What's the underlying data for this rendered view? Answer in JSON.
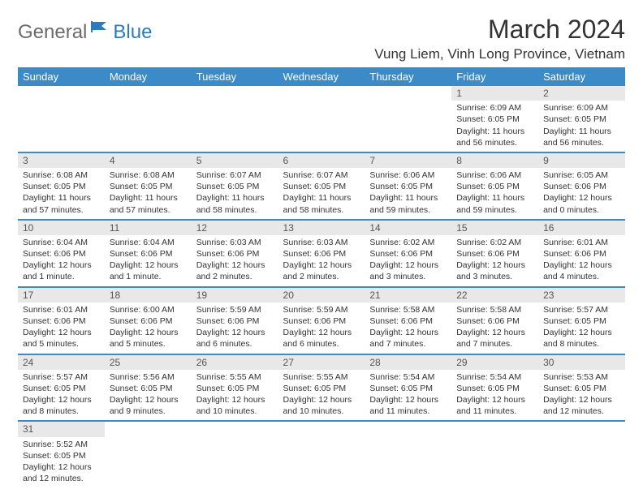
{
  "logo": {
    "part1": "General",
    "part2": "Blue"
  },
  "title": "March 2024",
  "location": "Vung Liem, Vinh Long Province, Vietnam",
  "colors": {
    "header_bg": "#3b8bc9",
    "header_fg": "#ffffff",
    "row_divider": "#3b8bc9",
    "daynum_bg": "#e8e8e8",
    "logo_gray": "#6b6b6b",
    "logo_blue": "#2d7bbf"
  },
  "day_headers": [
    "Sunday",
    "Monday",
    "Tuesday",
    "Wednesday",
    "Thursday",
    "Friday",
    "Saturday"
  ],
  "weeks": [
    [
      null,
      null,
      null,
      null,
      null,
      {
        "n": "1",
        "sunrise": "Sunrise: 6:09 AM",
        "sunset": "Sunset: 6:05 PM",
        "daylight": "Daylight: 11 hours and 56 minutes."
      },
      {
        "n": "2",
        "sunrise": "Sunrise: 6:09 AM",
        "sunset": "Sunset: 6:05 PM",
        "daylight": "Daylight: 11 hours and 56 minutes."
      }
    ],
    [
      {
        "n": "3",
        "sunrise": "Sunrise: 6:08 AM",
        "sunset": "Sunset: 6:05 PM",
        "daylight": "Daylight: 11 hours and 57 minutes."
      },
      {
        "n": "4",
        "sunrise": "Sunrise: 6:08 AM",
        "sunset": "Sunset: 6:05 PM",
        "daylight": "Daylight: 11 hours and 57 minutes."
      },
      {
        "n": "5",
        "sunrise": "Sunrise: 6:07 AM",
        "sunset": "Sunset: 6:05 PM",
        "daylight": "Daylight: 11 hours and 58 minutes."
      },
      {
        "n": "6",
        "sunrise": "Sunrise: 6:07 AM",
        "sunset": "Sunset: 6:05 PM",
        "daylight": "Daylight: 11 hours and 58 minutes."
      },
      {
        "n": "7",
        "sunrise": "Sunrise: 6:06 AM",
        "sunset": "Sunset: 6:05 PM",
        "daylight": "Daylight: 11 hours and 59 minutes."
      },
      {
        "n": "8",
        "sunrise": "Sunrise: 6:06 AM",
        "sunset": "Sunset: 6:05 PM",
        "daylight": "Daylight: 11 hours and 59 minutes."
      },
      {
        "n": "9",
        "sunrise": "Sunrise: 6:05 AM",
        "sunset": "Sunset: 6:06 PM",
        "daylight": "Daylight: 12 hours and 0 minutes."
      }
    ],
    [
      {
        "n": "10",
        "sunrise": "Sunrise: 6:04 AM",
        "sunset": "Sunset: 6:06 PM",
        "daylight": "Daylight: 12 hours and 1 minute."
      },
      {
        "n": "11",
        "sunrise": "Sunrise: 6:04 AM",
        "sunset": "Sunset: 6:06 PM",
        "daylight": "Daylight: 12 hours and 1 minute."
      },
      {
        "n": "12",
        "sunrise": "Sunrise: 6:03 AM",
        "sunset": "Sunset: 6:06 PM",
        "daylight": "Daylight: 12 hours and 2 minutes."
      },
      {
        "n": "13",
        "sunrise": "Sunrise: 6:03 AM",
        "sunset": "Sunset: 6:06 PM",
        "daylight": "Daylight: 12 hours and 2 minutes."
      },
      {
        "n": "14",
        "sunrise": "Sunrise: 6:02 AM",
        "sunset": "Sunset: 6:06 PM",
        "daylight": "Daylight: 12 hours and 3 minutes."
      },
      {
        "n": "15",
        "sunrise": "Sunrise: 6:02 AM",
        "sunset": "Sunset: 6:06 PM",
        "daylight": "Daylight: 12 hours and 3 minutes."
      },
      {
        "n": "16",
        "sunrise": "Sunrise: 6:01 AM",
        "sunset": "Sunset: 6:06 PM",
        "daylight": "Daylight: 12 hours and 4 minutes."
      }
    ],
    [
      {
        "n": "17",
        "sunrise": "Sunrise: 6:01 AM",
        "sunset": "Sunset: 6:06 PM",
        "daylight": "Daylight: 12 hours and 5 minutes."
      },
      {
        "n": "18",
        "sunrise": "Sunrise: 6:00 AM",
        "sunset": "Sunset: 6:06 PM",
        "daylight": "Daylight: 12 hours and 5 minutes."
      },
      {
        "n": "19",
        "sunrise": "Sunrise: 5:59 AM",
        "sunset": "Sunset: 6:06 PM",
        "daylight": "Daylight: 12 hours and 6 minutes."
      },
      {
        "n": "20",
        "sunrise": "Sunrise: 5:59 AM",
        "sunset": "Sunset: 6:06 PM",
        "daylight": "Daylight: 12 hours and 6 minutes."
      },
      {
        "n": "21",
        "sunrise": "Sunrise: 5:58 AM",
        "sunset": "Sunset: 6:06 PM",
        "daylight": "Daylight: 12 hours and 7 minutes."
      },
      {
        "n": "22",
        "sunrise": "Sunrise: 5:58 AM",
        "sunset": "Sunset: 6:06 PM",
        "daylight": "Daylight: 12 hours and 7 minutes."
      },
      {
        "n": "23",
        "sunrise": "Sunrise: 5:57 AM",
        "sunset": "Sunset: 6:05 PM",
        "daylight": "Daylight: 12 hours and 8 minutes."
      }
    ],
    [
      {
        "n": "24",
        "sunrise": "Sunrise: 5:57 AM",
        "sunset": "Sunset: 6:05 PM",
        "daylight": "Daylight: 12 hours and 8 minutes."
      },
      {
        "n": "25",
        "sunrise": "Sunrise: 5:56 AM",
        "sunset": "Sunset: 6:05 PM",
        "daylight": "Daylight: 12 hours and 9 minutes."
      },
      {
        "n": "26",
        "sunrise": "Sunrise: 5:55 AM",
        "sunset": "Sunset: 6:05 PM",
        "daylight": "Daylight: 12 hours and 10 minutes."
      },
      {
        "n": "27",
        "sunrise": "Sunrise: 5:55 AM",
        "sunset": "Sunset: 6:05 PM",
        "daylight": "Daylight: 12 hours and 10 minutes."
      },
      {
        "n": "28",
        "sunrise": "Sunrise: 5:54 AM",
        "sunset": "Sunset: 6:05 PM",
        "daylight": "Daylight: 12 hours and 11 minutes."
      },
      {
        "n": "29",
        "sunrise": "Sunrise: 5:54 AM",
        "sunset": "Sunset: 6:05 PM",
        "daylight": "Daylight: 12 hours and 11 minutes."
      },
      {
        "n": "30",
        "sunrise": "Sunrise: 5:53 AM",
        "sunset": "Sunset: 6:05 PM",
        "daylight": "Daylight: 12 hours and 12 minutes."
      }
    ],
    [
      {
        "n": "31",
        "sunrise": "Sunrise: 5:52 AM",
        "sunset": "Sunset: 6:05 PM",
        "daylight": "Daylight: 12 hours and 12 minutes."
      },
      null,
      null,
      null,
      null,
      null,
      null
    ]
  ]
}
